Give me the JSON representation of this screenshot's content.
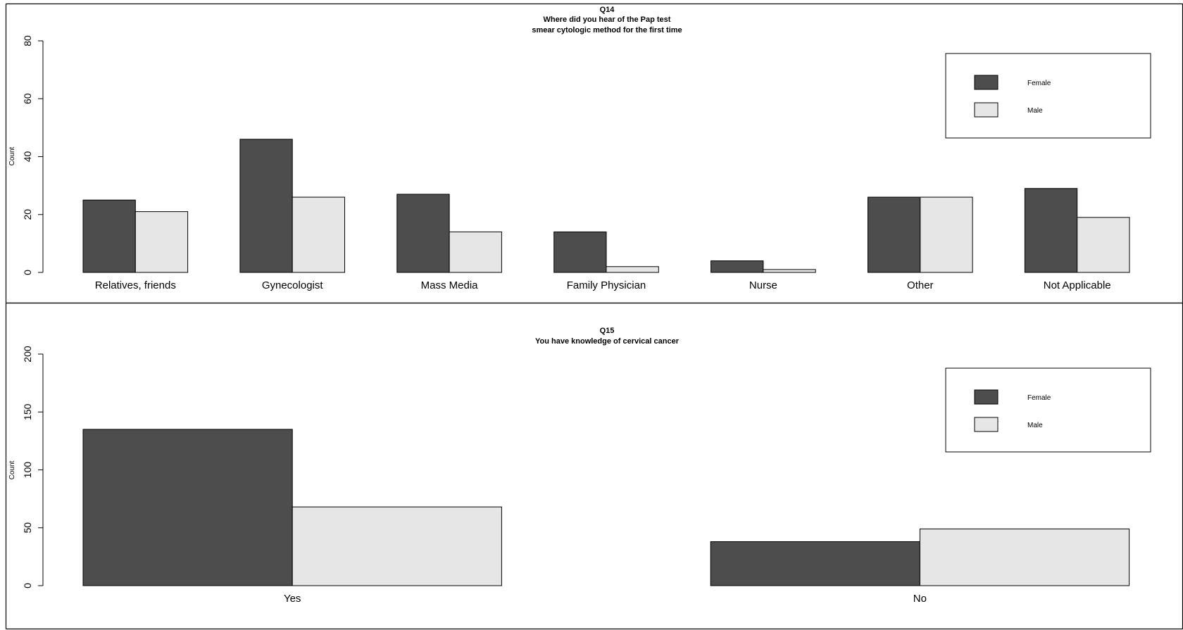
{
  "colors": {
    "female": "#4d4d4d",
    "male": "#e6e6e6",
    "stroke": "#000000"
  },
  "chart_data": [
    {
      "type": "bar",
      "title_lines": [
        "Q14",
        "Where did you hear of the Pap test",
        "smear cytologic method for the first time"
      ],
      "ylabel": "Count",
      "ylim": [
        0,
        80
      ],
      "yticks": [
        0,
        20,
        40,
        60,
        80
      ],
      "categories": [
        "Relatives, friends",
        "Gynecologist",
        "Mass Media",
        "Family Physician",
        "Nurse",
        "Other",
        "Not Applicable"
      ],
      "series": [
        {
          "name": "Female",
          "values": [
            25,
            46,
            27,
            14,
            4,
            26,
            29
          ]
        },
        {
          "name": "Male",
          "values": [
            21,
            26,
            14,
            2,
            1,
            26,
            19
          ]
        }
      ],
      "legend": {
        "position": "top-right",
        "entries": [
          "Female",
          "Male"
        ]
      },
      "grid": false
    },
    {
      "type": "bar",
      "title_lines": [
        "Q15",
        "You have knowledge of cervical cancer"
      ],
      "ylabel": "Count",
      "ylim": [
        0,
        200
      ],
      "yticks": [
        0,
        50,
        100,
        150,
        200
      ],
      "categories": [
        "Yes",
        "No"
      ],
      "series": [
        {
          "name": "Female",
          "values": [
            135,
            38
          ]
        },
        {
          "name": "Male",
          "values": [
            68,
            49
          ]
        }
      ],
      "legend": {
        "position": "top-right",
        "entries": [
          "Female",
          "Male"
        ]
      },
      "grid": false
    }
  ]
}
